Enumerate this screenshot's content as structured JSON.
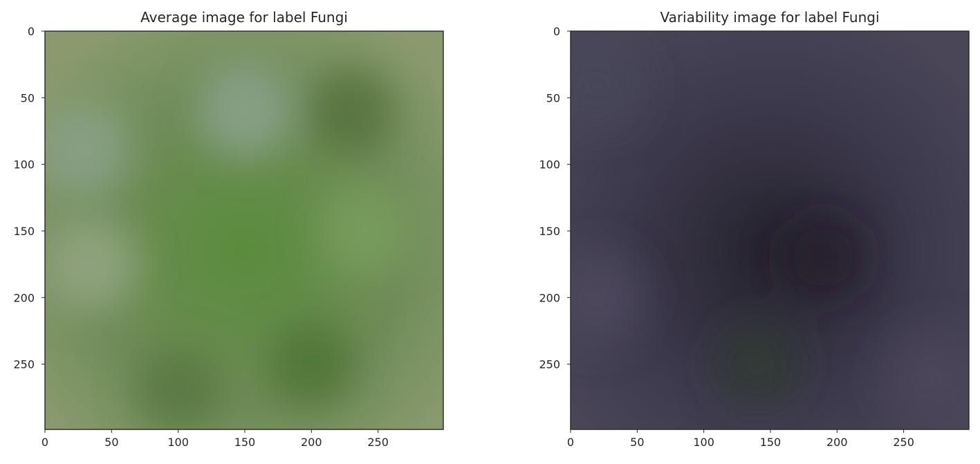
{
  "chart_data": [
    {
      "type": "heatmap",
      "title": "Average image for label Fungi",
      "xlabel": "",
      "ylabel": "",
      "xlim": [
        0,
        299
      ],
      "ylim": [
        299,
        0
      ],
      "xticks": [
        0,
        50,
        100,
        150,
        200,
        250
      ],
      "yticks": [
        0,
        50,
        100,
        150,
        200,
        250
      ],
      "grid": false,
      "image": {
        "base_color": "#6f8c58",
        "center_color": "#5a8c3c",
        "edge_color": "#8a9a6e",
        "light_patches": [
          {
            "x": 30,
            "y": 90,
            "color": "#8ea48e"
          },
          {
            "x": 150,
            "y": 60,
            "color": "#8fa694"
          },
          {
            "x": 35,
            "y": 175,
            "color": "#9aa88a"
          },
          {
            "x": 240,
            "y": 150,
            "color": "#7aa060"
          }
        ],
        "dark_patches": [
          {
            "x": 230,
            "y": 60,
            "color": "#4f6b35"
          },
          {
            "x": 200,
            "y": 250,
            "color": "#466e2e"
          },
          {
            "x": 100,
            "y": 270,
            "color": "#52743a"
          }
        ]
      }
    },
    {
      "type": "heatmap",
      "title": "Variability image for label Fungi",
      "xlabel": "",
      "ylabel": "",
      "xlim": [
        0,
        299
      ],
      "ylim": [
        299,
        0
      ],
      "xticks": [
        0,
        50,
        100,
        150,
        200,
        250
      ],
      "yticks": [
        0,
        50,
        100,
        150,
        200,
        250
      ],
      "grid": false,
      "image": {
        "base_color": "#3e3a4e",
        "center_color": "#26232e",
        "edge_color": "#4a4658",
        "light_patches": [
          {
            "x": 20,
            "y": 200,
            "color": "#504a60"
          },
          {
            "x": 270,
            "y": 260,
            "color": "#4c485c"
          },
          {
            "x": 20,
            "y": 40,
            "color": "#48465a"
          }
        ],
        "dark_patches": [
          {
            "x": 140,
            "y": 250,
            "color": "#2e3a2e"
          },
          {
            "x": 190,
            "y": 170,
            "color": "#24202a"
          }
        ]
      }
    }
  ]
}
